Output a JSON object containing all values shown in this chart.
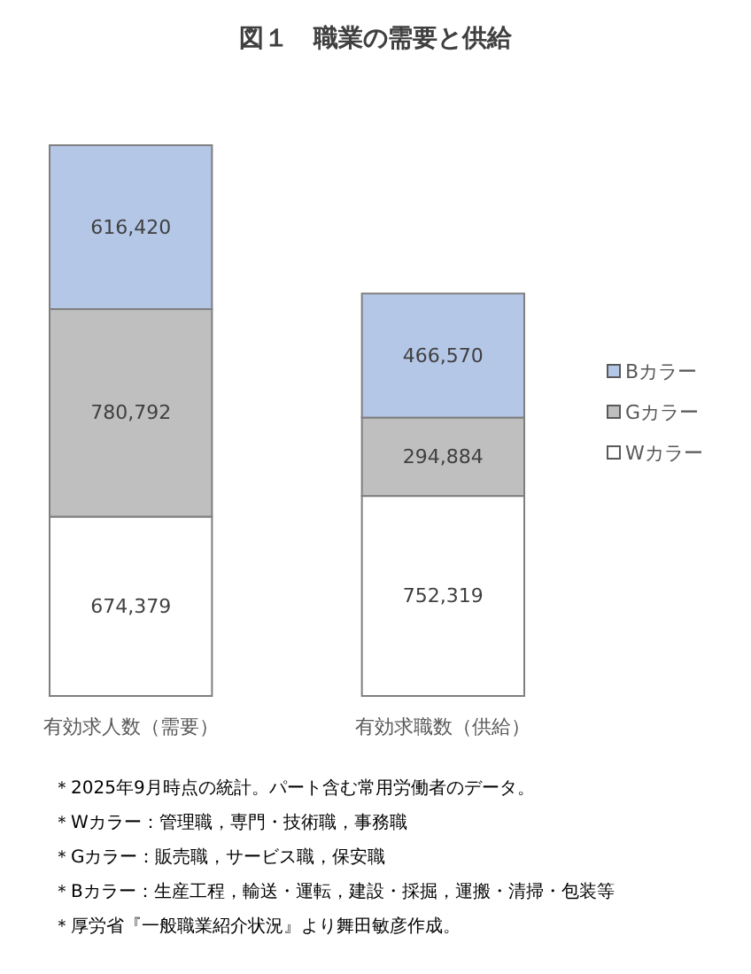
{
  "chart_data": {
    "type": "bar",
    "title": "図１　職業の需要と供給",
    "categories": [
      "有効求人数（需要）",
      "有効求職数（供給）"
    ],
    "stacked": true,
    "legend": "right",
    "series": [
      {
        "name": "Wカラー",
        "color": "#ffffff",
        "values": [
          674379,
          752319
        ],
        "value_labels": [
          "674,379",
          "752,319"
        ]
      },
      {
        "name": "Gカラー",
        "color": "#bfbfbf",
        "values": [
          780792,
          294884
        ],
        "value_labels": [
          "780,792",
          "294,884"
        ]
      },
      {
        "name": "Bカラー",
        "color": "#b4c7e7",
        "values": [
          616420,
          466570
        ],
        "value_labels": [
          "616,420",
          "466,570"
        ]
      }
    ],
    "annotations": [
      "＊2025年9月時点の統計。パート含む常用労働者のデータ。",
      "＊Wカラー：管理職，専門・技術職，事務職",
      "＊Gカラー：販売職，サービス職，保安職",
      "＊Bカラー：生産工程，輸送・運転，建設・採掘，運搬・清掃・包装等",
      "＊厚労省『一般職業紹介状況』より舞田敏彦作成。"
    ]
  }
}
